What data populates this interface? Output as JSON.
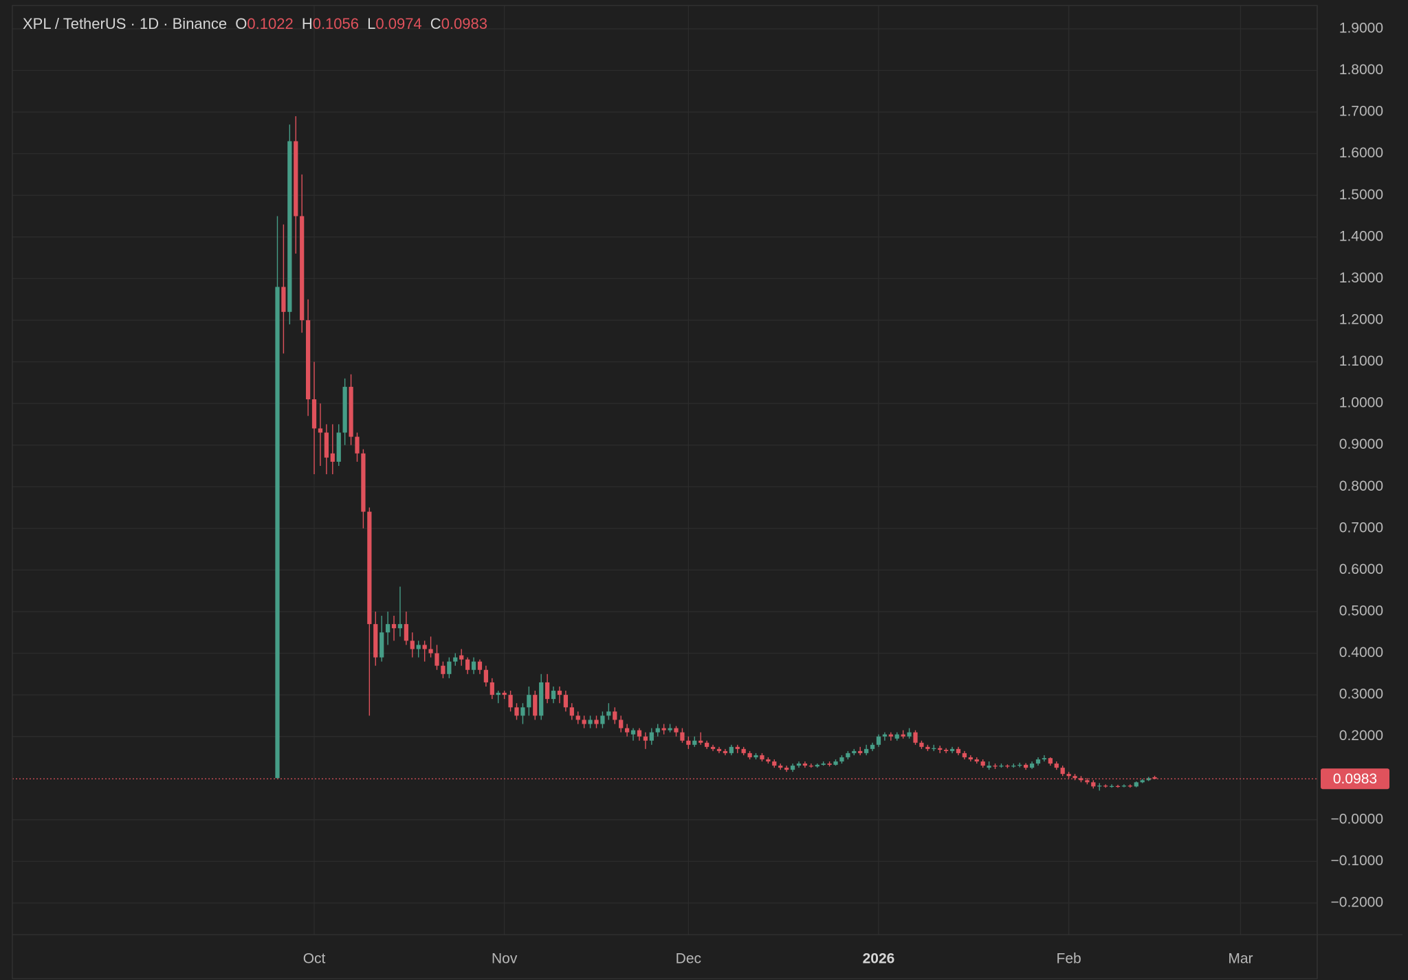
{
  "chart_data": {
    "type": "candlestick",
    "header": {
      "symbol": "XPL / TetherUS · 1D · Binance",
      "fields": [
        {
          "label": "O",
          "value": 0.1022
        },
        {
          "label": "H",
          "value": 0.1056
        },
        {
          "label": "L",
          "value": 0.0974
        },
        {
          "label": "C",
          "value": 0.0983
        }
      ]
    },
    "up_color": "#469d87",
    "down_color": "#e0525c",
    "grid": true,
    "xlim": [
      -43.2,
      169.5
    ],
    "xticks": [
      {
        "value": 6,
        "label": "Oct"
      },
      {
        "value": 37,
        "label": "Nov"
      },
      {
        "value": 67,
        "label": "Dec"
      },
      {
        "value": 98,
        "label": "2026"
      },
      {
        "value": 129,
        "label": "Feb"
      },
      {
        "value": 157,
        "label": "Mar"
      }
    ],
    "ylim": [
      -0.276,
      1.956
    ],
    "yticks": [
      {
        "value": 1.9,
        "label": "1.9000"
      },
      {
        "value": 1.8,
        "label": "1.8000"
      },
      {
        "value": 1.7,
        "label": "1.7000"
      },
      {
        "value": 1.6,
        "label": "1.6000"
      },
      {
        "value": 1.5,
        "label": "1.5000"
      },
      {
        "value": 1.4,
        "label": "1.4000"
      },
      {
        "value": 1.3,
        "label": "1.3000"
      },
      {
        "value": 1.2,
        "label": "1.2000"
      },
      {
        "value": 1.1,
        "label": "1.1000"
      },
      {
        "value": 1.0,
        "label": "1.0000"
      },
      {
        "value": 0.9,
        "label": "0.9000"
      },
      {
        "value": 0.8,
        "label": "0.8000"
      },
      {
        "value": 0.7,
        "label": "0.7000"
      },
      {
        "value": 0.6,
        "label": "0.6000"
      },
      {
        "value": 0.5,
        "label": "0.5000"
      },
      {
        "value": 0.4,
        "label": "0.4000"
      },
      {
        "value": 0.3,
        "label": "0.3000"
      },
      {
        "value": 0.2,
        "label": "0.2000"
      },
      {
        "value": 0,
        "label": "−0.0000"
      },
      {
        "value": -0.1,
        "label": "−0.1000"
      },
      {
        "value": -0.2,
        "label": "−0.2000"
      }
    ],
    "open": [
      0.1,
      1.28,
      1.22,
      1.63,
      1.45,
      1.2,
      1.01,
      0.94,
      0.93,
      0.88,
      0.86,
      0.93,
      1.04,
      0.92,
      0.88,
      0.74,
      0.47,
      0.39,
      0.45,
      0.47,
      0.46,
      0.47,
      0.43,
      0.41,
      0.42,
      0.41,
      0.4,
      0.37,
      0.35,
      0.38,
      0.395,
      0.385,
      0.36,
      0.38,
      0.36,
      0.33,
      0.3,
      0.305,
      0.3,
      0.27,
      0.25,
      0.27,
      0.3,
      0.25,
      0.33,
      0.29,
      0.31,
      0.3,
      0.27,
      0.25,
      0.24,
      0.23,
      0.24,
      0.23,
      0.25,
      0.26,
      0.24,
      0.22,
      0.205,
      0.215,
      0.2,
      0.19,
      0.21,
      0.22,
      0.215,
      0.22,
      0.21,
      0.19,
      0.18,
      0.19,
      0.185,
      0.175,
      0.17,
      0.165,
      0.16,
      0.175,
      0.17,
      0.16,
      0.15,
      0.155,
      0.145,
      0.14,
      0.13,
      0.125,
      0.12,
      0.13,
      0.135,
      0.13,
      0.128,
      0.132,
      0.135,
      0.132,
      0.14,
      0.15,
      0.16,
      0.165,
      0.16,
      0.17,
      0.18,
      0.2,
      0.205,
      0.195,
      0.205,
      0.2,
      0.21,
      0.185,
      0.175,
      0.17,
      0.172,
      0.168,
      0.165,
      0.17,
      0.16,
      0.15,
      0.145,
      0.14,
      0.125,
      0.13,
      0.128,
      0.13,
      0.128,
      0.13,
      0.132,
      0.125,
      0.135,
      0.145,
      0.148,
      0.135,
      0.125,
      0.11,
      0.105,
      0.1,
      0.095,
      0.09,
      0.08,
      0.082,
      0.08,
      0.081,
      0.08,
      0.082,
      0.08,
      0.09,
      0.095,
      0.1022
    ],
    "high": [
      1.45,
      1.43,
      1.67,
      1.69,
      1.55,
      1.25,
      1.1,
      1.0,
      0.95,
      0.95,
      0.95,
      1.06,
      1.07,
      0.93,
      0.89,
      0.75,
      0.5,
      0.49,
      0.5,
      0.49,
      0.56,
      0.5,
      0.45,
      0.43,
      0.43,
      0.44,
      0.42,
      0.38,
      0.39,
      0.4,
      0.41,
      0.39,
      0.39,
      0.385,
      0.37,
      0.34,
      0.31,
      0.31,
      0.31,
      0.28,
      0.28,
      0.32,
      0.31,
      0.35,
      0.35,
      0.32,
      0.32,
      0.31,
      0.28,
      0.26,
      0.25,
      0.25,
      0.25,
      0.26,
      0.28,
      0.27,
      0.25,
      0.23,
      0.22,
      0.22,
      0.21,
      0.22,
      0.23,
      0.23,
      0.23,
      0.225,
      0.22,
      0.2,
      0.2,
      0.21,
      0.19,
      0.18,
      0.175,
      0.17,
      0.18,
      0.18,
      0.175,
      0.165,
      0.16,
      0.16,
      0.15,
      0.145,
      0.135,
      0.13,
      0.135,
      0.14,
      0.14,
      0.135,
      0.135,
      0.14,
      0.14,
      0.145,
      0.155,
      0.165,
      0.17,
      0.175,
      0.18,
      0.185,
      0.205,
      0.21,
      0.21,
      0.21,
      0.215,
      0.22,
      0.215,
      0.19,
      0.18,
      0.18,
      0.178,
      0.172,
      0.175,
      0.175,
      0.165,
      0.155,
      0.15,
      0.145,
      0.14,
      0.135,
      0.135,
      0.133,
      0.135,
      0.137,
      0.136,
      0.14,
      0.15,
      0.155,
      0.15,
      0.14,
      0.13,
      0.115,
      0.11,
      0.105,
      0.1,
      0.095,
      0.088,
      0.085,
      0.085,
      0.084,
      0.085,
      0.085,
      0.092,
      0.098,
      0.103,
      0.1056
    ],
    "low": [
      0.1,
      1.12,
      1.19,
      1.36,
      1.17,
      0.97,
      0.83,
      0.85,
      0.83,
      0.83,
      0.85,
      0.9,
      0.9,
      0.86,
      0.7,
      0.25,
      0.37,
      0.38,
      0.42,
      0.43,
      0.44,
      0.42,
      0.39,
      0.39,
      0.38,
      0.39,
      0.36,
      0.34,
      0.34,
      0.37,
      0.37,
      0.35,
      0.35,
      0.35,
      0.32,
      0.29,
      0.28,
      0.29,
      0.26,
      0.24,
      0.23,
      0.25,
      0.24,
      0.24,
      0.28,
      0.28,
      0.28,
      0.26,
      0.24,
      0.23,
      0.22,
      0.22,
      0.22,
      0.22,
      0.24,
      0.23,
      0.21,
      0.2,
      0.19,
      0.19,
      0.17,
      0.18,
      0.2,
      0.205,
      0.21,
      0.2,
      0.185,
      0.17,
      0.175,
      0.18,
      0.17,
      0.165,
      0.16,
      0.155,
      0.155,
      0.16,
      0.155,
      0.145,
      0.145,
      0.14,
      0.135,
      0.125,
      0.12,
      0.115,
      0.115,
      0.125,
      0.125,
      0.125,
      0.125,
      0.13,
      0.128,
      0.13,
      0.135,
      0.145,
      0.155,
      0.155,
      0.155,
      0.165,
      0.175,
      0.19,
      0.19,
      0.19,
      0.195,
      0.195,
      0.18,
      0.17,
      0.165,
      0.165,
      0.16,
      0.16,
      0.16,
      0.155,
      0.145,
      0.14,
      0.135,
      0.125,
      0.12,
      0.122,
      0.125,
      0.124,
      0.125,
      0.126,
      0.12,
      0.122,
      0.13,
      0.14,
      0.13,
      0.12,
      0.105,
      0.1,
      0.095,
      0.09,
      0.085,
      0.075,
      0.07,
      0.077,
      0.077,
      0.077,
      0.078,
      0.077,
      0.078,
      0.088,
      0.093,
      0.0974
    ],
    "close": [
      1.28,
      1.22,
      1.63,
      1.45,
      1.2,
      1.01,
      0.94,
      0.93,
      0.87,
      0.86,
      0.93,
      1.04,
      0.92,
      0.88,
      0.74,
      0.47,
      0.39,
      0.45,
      0.47,
      0.46,
      0.47,
      0.43,
      0.41,
      0.42,
      0.41,
      0.4,
      0.37,
      0.35,
      0.38,
      0.39,
      0.385,
      0.36,
      0.38,
      0.36,
      0.33,
      0.3,
      0.305,
      0.3,
      0.27,
      0.25,
      0.27,
      0.3,
      0.25,
      0.33,
      0.29,
      0.31,
      0.3,
      0.27,
      0.25,
      0.24,
      0.23,
      0.24,
      0.23,
      0.25,
      0.26,
      0.24,
      0.22,
      0.21,
      0.215,
      0.2,
      0.19,
      0.21,
      0.22,
      0.215,
      0.22,
      0.21,
      0.19,
      0.18,
      0.19,
      0.185,
      0.175,
      0.17,
      0.165,
      0.16,
      0.175,
      0.17,
      0.16,
      0.15,
      0.155,
      0.145,
      0.14,
      0.13,
      0.125,
      0.12,
      0.13,
      0.135,
      0.13,
      0.128,
      0.132,
      0.135,
      0.132,
      0.14,
      0.15,
      0.16,
      0.165,
      0.16,
      0.17,
      0.18,
      0.2,
      0.205,
      0.2,
      0.205,
      0.2,
      0.21,
      0.185,
      0.175,
      0.17,
      0.172,
      0.168,
      0.165,
      0.17,
      0.16,
      0.15,
      0.145,
      0.14,
      0.13,
      0.13,
      0.128,
      0.13,
      0.128,
      0.13,
      0.132,
      0.125,
      0.135,
      0.145,
      0.148,
      0.135,
      0.125,
      0.11,
      0.105,
      0.1,
      0.095,
      0.09,
      0.08,
      0.082,
      0.08,
      0.081,
      0.08,
      0.082,
      0.08,
      0.09,
      0.095,
      0.1,
      0.0983
    ]
  }
}
